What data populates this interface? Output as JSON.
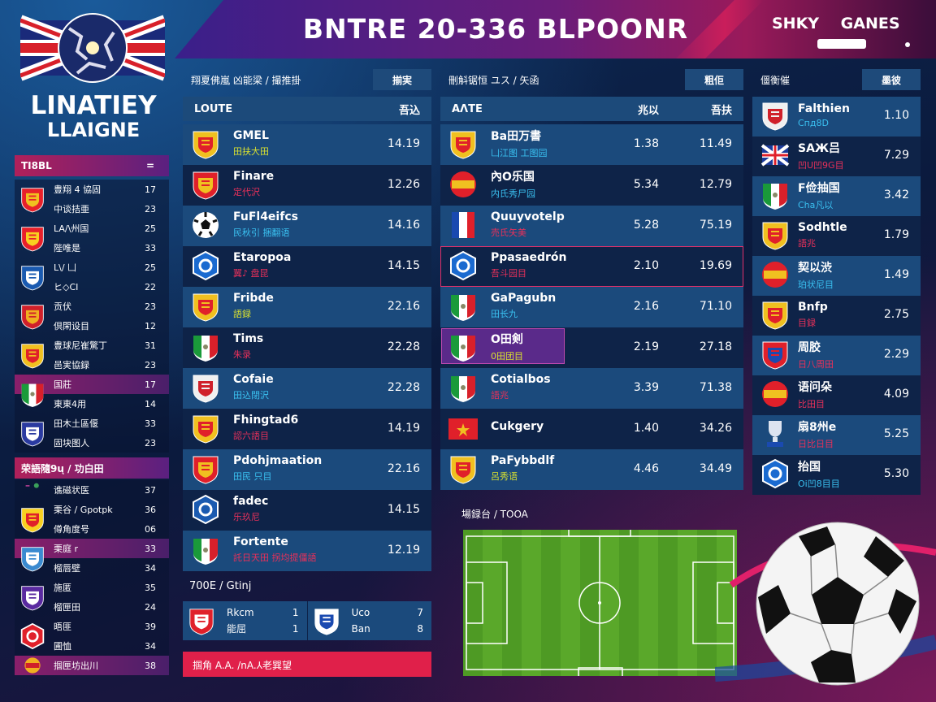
{
  "header": {
    "title": "BNTRE 20-336 BLPOONR",
    "brand": "SHKY GANES"
  },
  "league": {
    "line1": "LINATIEY",
    "line2": "LLAIGNE"
  },
  "sidebar": {
    "title": "TI8BL",
    "title_icon": "=",
    "section_title": "荣語隨9ų / 功白田",
    "groups_a": [
      {
        "icon": {
          "type": "shield",
          "c1": "#e8202a",
          "c2": "#f0c020"
        },
        "rows": [
          {
            "label": "豊翔 4 協固",
            "value": "17"
          },
          {
            "label": "中谈拮亜",
            "value": "23"
          }
        ]
      },
      {
        "icon": {
          "type": "shield",
          "c1": "#e8202a",
          "c2": "#f8d020"
        },
        "rows": [
          {
            "label": "LA/\\州国",
            "value": "25"
          },
          {
            "label": "陛唯是",
            "value": "33"
          }
        ]
      },
      {
        "icon": {
          "type": "shield",
          "c1": "#1a5ab0",
          "c2": "#ffffff"
        },
        "rows": [
          {
            "label": "L\\/ 凵",
            "value": "25"
          },
          {
            "label": "ヒ◇CI",
            "value": "22"
          }
        ]
      },
      {
        "icon": {
          "type": "shield",
          "c1": "#d0202a",
          "c2": "#f0b020"
        },
        "rows": [
          {
            "label": "贡伏",
            "value": "23"
          },
          {
            "label": "倶閑设目",
            "value": "12"
          }
        ]
      },
      {
        "icon": {
          "type": "shield",
          "c1": "#f0c020",
          "c2": "#e0202a"
        },
        "rows": [
          {
            "label": "豊球尼崔驚丁",
            "value": "31"
          },
          {
            "label": "邑実協録",
            "value": "23"
          }
        ]
      },
      {
        "icon": {
          "type": "tricolor",
          "c1": "#1a9a3a",
          "c2": "#d8202a"
        },
        "highlight": true,
        "rows": [
          {
            "label": "国莊",
            "value": "17"
          },
          {
            "label": "東東4用",
            "value": "14"
          }
        ]
      },
      {
        "icon": {
          "type": "shield",
          "c1": "#2a3aa0",
          "c2": "#ffffff"
        },
        "rows": [
          {
            "label": "田木土區偃",
            "value": "33"
          },
          {
            "label": "固块图人",
            "value": "23"
          }
        ]
      }
    ],
    "groups_b": [
      {
        "icon": {
          "type": "dot",
          "c1": "#a03a8a",
          "c2": "#3aa05a"
        },
        "rows": [
          {
            "label": "谯磁状医",
            "value": "37"
          }
        ]
      },
      {
        "icon": {
          "type": "shield",
          "c1": "#f8d020",
          "c2": "#e0202a"
        },
        "rows": [
          {
            "label": "栗谷 / Gpotpk",
            "value": "36"
          },
          {
            "label": "僔角度号",
            "value": "06"
          }
        ]
      },
      {
        "icon": {
          "type": "shield",
          "c1": "#3a8ad0",
          "c2": "#ffffff"
        },
        "highlight": true,
        "rows": [
          {
            "label": "栗庭 r",
            "value": "33"
          },
          {
            "label": "榴唇壁",
            "value": "34"
          }
        ]
      },
      {
        "icon": {
          "type": "shield",
          "c1": "#5a2aa0",
          "c2": "#ffffff"
        },
        "rows": [
          {
            "label": "施匿",
            "value": "35"
          },
          {
            "label": "榴匣田",
            "value": "24"
          }
        ]
      },
      {
        "icon": {
          "type": "hex",
          "c1": "#e0202a",
          "c2": "#ffffff"
        },
        "rows": [
          {
            "label": "晤匪",
            "value": "39"
          },
          {
            "label": "圃恤",
            "value": "34"
          }
        ]
      },
      {
        "icon": {
          "type": "circle",
          "c1": "#f0b020",
          "c2": "#d0202a"
        },
        "highlight": true,
        "rows": [
          {
            "label": "掴匣坊出川",
            "value": "38"
          }
        ]
      }
    ]
  },
  "col1": {
    "heading": "翔夏佛嵐 凶能梁 / 撮推掛",
    "button": "揃実",
    "col_name": "LOUTE",
    "col_val": "吾込",
    "rows": [
      {
        "name": "GMEL",
        "sub": "田扶大田",
        "sub_color": "y",
        "value": "14.19",
        "icon": {
          "type": "shield",
          "c1": "#f0c020",
          "c2": "#e0202a"
        }
      },
      {
        "name": "Finare",
        "sub": "定代沢",
        "sub_color": "r",
        "value": "12.26",
        "icon": {
          "type": "shield",
          "c1": "#e0202a",
          "c2": "#f0c020"
        }
      },
      {
        "name": "FuFl4eifcs",
        "sub": "民秋引 捆翻语",
        "sub_color": "c",
        "value": "14.16",
        "icon": {
          "type": "ball",
          "c1": "#ffffff",
          "c2": "#111111"
        }
      },
      {
        "name": "Etaropoa",
        "sub": "翼♪ 盘昆",
        "sub_color": "r",
        "value": "14.15",
        "icon": {
          "type": "hex",
          "c1": "#1a6ad0",
          "c2": "#ffffff"
        }
      },
      {
        "name": "Fribde",
        "sub": "語録",
        "sub_color": "y",
        "value": "22.16",
        "icon": {
          "type": "shield",
          "c1": "#f0c020",
          "c2": "#e0202a"
        }
      },
      {
        "name": "Tims",
        "sub": "朱录",
        "sub_color": "r",
        "value": "22.28",
        "icon": {
          "type": "tricolor",
          "c1": "#1a9a3a",
          "c2": "#d8202a"
        }
      },
      {
        "name": "Cofaie",
        "sub": "田込閉沢",
        "sub_color": "c",
        "value": "22.28",
        "icon": {
          "type": "shield",
          "c1": "#f0f0f0",
          "c2": "#d0202a"
        }
      },
      {
        "name": "Fhingtad6",
        "sub": "認六語目",
        "sub_color": "r",
        "value": "14.19",
        "icon": {
          "type": "shield",
          "c1": "#f0c020",
          "c2": "#e0202a"
        }
      },
      {
        "name": "Pdohjmaation",
        "sub": "田民 只目",
        "sub_color": "c",
        "value": "22.16",
        "icon": {
          "type": "shield",
          "c1": "#e0202a",
          "c2": "#f0c020"
        }
      },
      {
        "name": "fadec",
        "sub": "乐玖尼",
        "sub_color": "r",
        "value": "14.15",
        "icon": {
          "type": "hex",
          "c1": "#1a5ab0",
          "c2": "#ffffff"
        }
      },
      {
        "name": "Fortente",
        "sub": "託日天田 拐均提僵語",
        "sub_color": "r",
        "value": "12.19",
        "icon": {
          "type": "tricolor",
          "c1": "#1a9a3a",
          "c2": "#d8202a"
        }
      }
    ]
  },
  "recent": {
    "title": "700E / Gtinj",
    "home": {
      "name": "Rkcm",
      "sub": "能屈",
      "score": "1",
      "score2": "1",
      "icon": {
        "type": "shield",
        "c1": "#e0202a",
        "c2": "#ffffff"
      }
    },
    "away": {
      "name": "Uco",
      "sub": "Ban",
      "score": "7",
      "score2": "8",
      "icon": {
        "type": "shield",
        "c1": "#ffffff",
        "c2": "#1a4ab0"
      }
    },
    "banner": "掴角 A.A. /nA.⅄老巽望"
  },
  "col2": {
    "heading": "刪斛锯恒 ユス / 矢函",
    "button": "粗佢",
    "col_name": "ΑΛTE",
    "col_val1": "兆以",
    "col_val2": "吾扶",
    "rows": [
      {
        "name": "Ba田万書",
        "sub": "凵江图 工图园",
        "sub_color": "c",
        "v1": "1.38",
        "v2": "11.49",
        "icon": {
          "type": "shield",
          "c1": "#f0c020",
          "c2": "#e0202a"
        }
      },
      {
        "name": "內O乐国",
        "sub": "内氏秀尸园",
        "sub_color": "c",
        "v1": "5.34",
        "v2": "12.79",
        "icon": {
          "type": "circle",
          "c1": "#e0202a",
          "c2": "#f0c020"
        }
      },
      {
        "name": "Quuyvotelp",
        "sub": "売氏矢美",
        "sub_color": "r",
        "v1": "5.28",
        "v2": "75.19",
        "icon": {
          "type": "french",
          "c1": "#1a4ab0",
          "c2": "#e0202a"
        }
      },
      {
        "name": "Ppasaedrón",
        "sub": "吾斗园目",
        "sub_color": "r",
        "v1": "2.10",
        "v2": "19.69",
        "selected": true,
        "icon": {
          "type": "hex",
          "c1": "#1a6ad0",
          "c2": "#ffffff"
        }
      },
      {
        "name": "GaPagubn",
        "sub": "田长九",
        "sub_color": "c",
        "v1": "2.16",
        "v2": "71.10",
        "icon": {
          "type": "tricolor",
          "c1": "#1a9a3a",
          "c2": "#d8202a"
        }
      },
      {
        "name": "O田剣",
        "sub": "0田团目",
        "sub_color": "y",
        "v1": "2.19",
        "v2": "27.18",
        "purple": true,
        "icon": {
          "type": "tricolor",
          "c1": "#1a9a3a",
          "c2": "#d8202a"
        }
      },
      {
        "name": "Cotialbos",
        "sub": "語兆",
        "sub_color": "r",
        "v1": "3.39",
        "v2": "71.38",
        "icon": {
          "type": "tricolor",
          "c1": "#1a9a3a",
          "c2": "#d8202a"
        }
      },
      {
        "name": "Cukgery",
        "sub": "",
        "sub_color": "r",
        "v1": "1.40",
        "v2": "34.26",
        "icon": {
          "type": "flag",
          "c1": "#e0202a",
          "c2": "#f0c020"
        }
      },
      {
        "name": "PaFybbdlf",
        "sub": "呂秀语",
        "sub_color": "y",
        "v1": "4.46",
        "v2": "34.49",
        "icon": {
          "type": "shield",
          "c1": "#f0c020",
          "c2": "#e0202a"
        }
      }
    ]
  },
  "col3": {
    "heading": "僵衡催",
    "button": "墨彼",
    "rows": [
      {
        "name": "Falthien",
        "sub": "Cпд8D",
        "sub_color": "c",
        "value": "1.10",
        "icon": {
          "type": "shield",
          "c1": "#f0f0f0",
          "c2": "#d0202a"
        }
      },
      {
        "name": "SAЖ吕",
        "sub": "凹U凹9G目",
        "sub_color": "r",
        "value": "7.29",
        "icon": {
          "type": "uk",
          "c1": "#1a3a9a",
          "c2": "#e0202a"
        }
      },
      {
        "name": "F俭抽国",
        "sub": "Cha凡以",
        "sub_color": "c",
        "value": "3.42",
        "icon": {
          "type": "tricolor",
          "c1": "#1a9a3a",
          "c2": "#d8202a"
        }
      },
      {
        "name": "Sodhtle",
        "sub": "語兆",
        "sub_color": "r",
        "value": "1.79",
        "icon": {
          "type": "shield",
          "c1": "#f0c020",
          "c2": "#e0202a"
        }
      },
      {
        "name": "契以渋",
        "sub": "珀状尼目",
        "sub_color": "c",
        "value": "1.49",
        "icon": {
          "type": "circle",
          "c1": "#e0202a",
          "c2": "#f0c020"
        }
      },
      {
        "name": "Bnfp",
        "sub": "目録",
        "sub_color": "r",
        "value": "2.75",
        "icon": {
          "type": "shield",
          "c1": "#f0c020",
          "c2": "#e0202a"
        }
      },
      {
        "name": "周胶",
        "sub": "日八周田",
        "sub_color": "r",
        "value": "2.29",
        "icon": {
          "type": "shield",
          "c1": "#e0202a",
          "c2": "#1a4ab0"
        }
      },
      {
        "name": "语问朵",
        "sub": "比田目",
        "sub_color": "r",
        "value": "4.09",
        "icon": {
          "type": "circle",
          "c1": "#e0202a",
          "c2": "#f0c020"
        }
      },
      {
        "name": "扇8州e",
        "sub": "日比日目",
        "sub_color": "r",
        "value": "5.25",
        "icon": {
          "type": "trophy",
          "c1": "#dde4f0",
          "c2": "#1a4ab0"
        }
      },
      {
        "name": "抬国",
        "sub": "Oi凹8目目",
        "sub_color": "c",
        "value": "5.30",
        "icon": {
          "type": "hex",
          "c1": "#1a6ad0",
          "c2": "#ffffff"
        }
      }
    ]
  },
  "pitch": {
    "title": "場録台 / TOOA",
    "grass": "#5aa82a"
  }
}
